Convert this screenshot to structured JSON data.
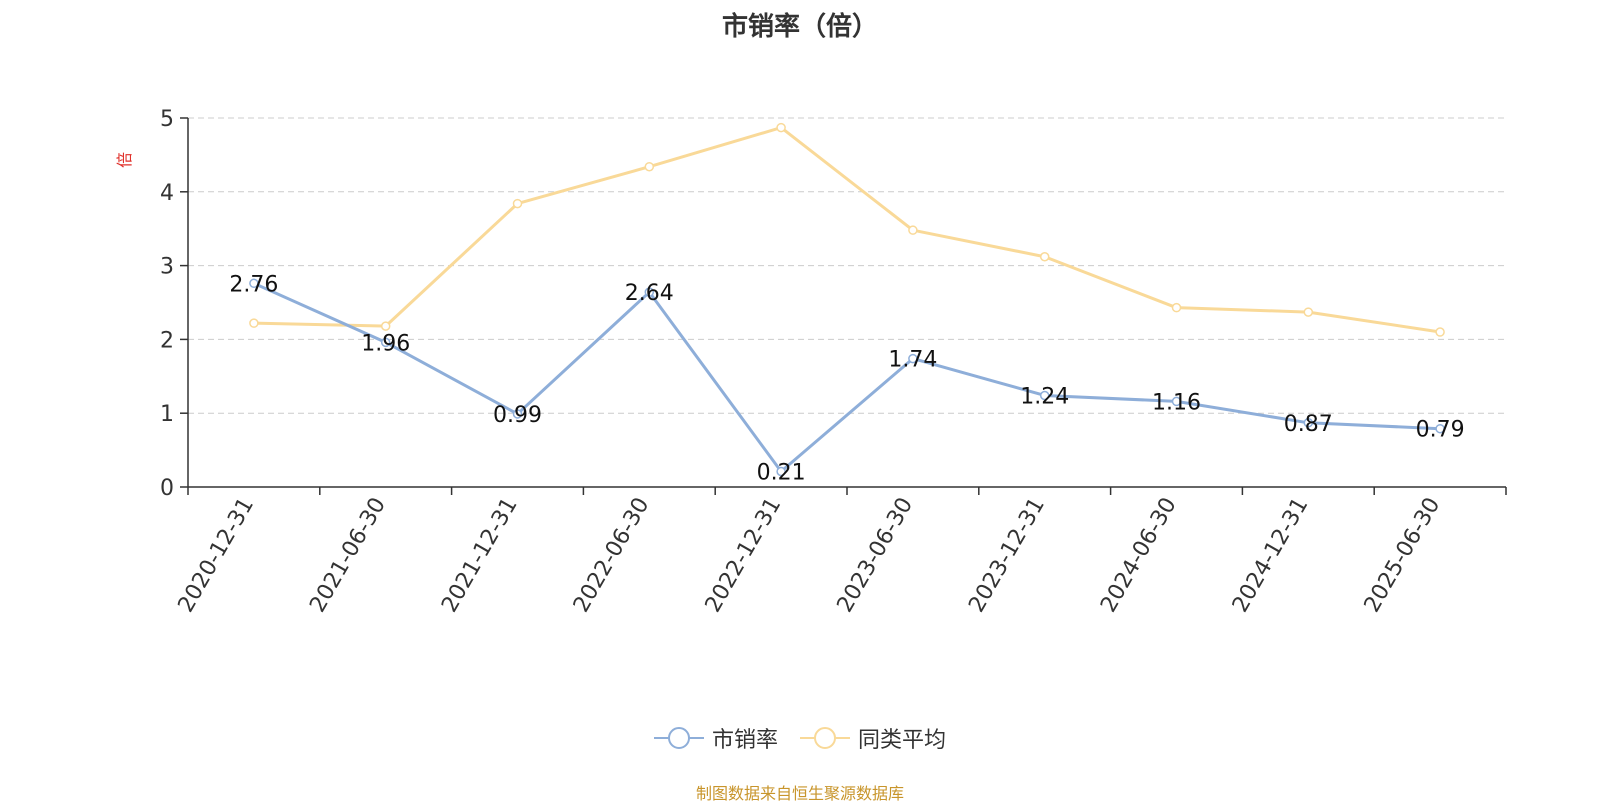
{
  "chart_data": {
    "type": "line",
    "title": "市销率（倍）",
    "ylabel": "倍",
    "xlabel": "",
    "ylim": [
      0,
      5
    ],
    "yticks": [
      0,
      1,
      2,
      3,
      4,
      5
    ],
    "grid": true,
    "legend_position": "bottom",
    "categories": [
      "2020-12-31",
      "2021-06-30",
      "2021-12-31",
      "2022-06-30",
      "2022-12-31",
      "2023-06-30",
      "2023-12-31",
      "2024-06-30",
      "2024-12-31",
      "2025-06-30"
    ],
    "series": [
      {
        "name": "市销率",
        "color": "#8eaed9",
        "values": [
          2.76,
          1.96,
          0.99,
          2.64,
          0.21,
          1.74,
          1.24,
          1.16,
          0.87,
          0.79
        ],
        "labels": [
          "2.76",
          "1.96",
          "0.99",
          "2.64",
          "0.21",
          "1.74",
          "1.24",
          "1.16",
          "0.87",
          "0.79"
        ]
      },
      {
        "name": "同类平均",
        "color": "#f9d998",
        "values": [
          2.22,
          2.18,
          3.84,
          4.34,
          4.87,
          3.48,
          3.12,
          2.43,
          2.37,
          2.1
        ]
      }
    ]
  },
  "source": "制图数据来自恒生聚源数据库"
}
